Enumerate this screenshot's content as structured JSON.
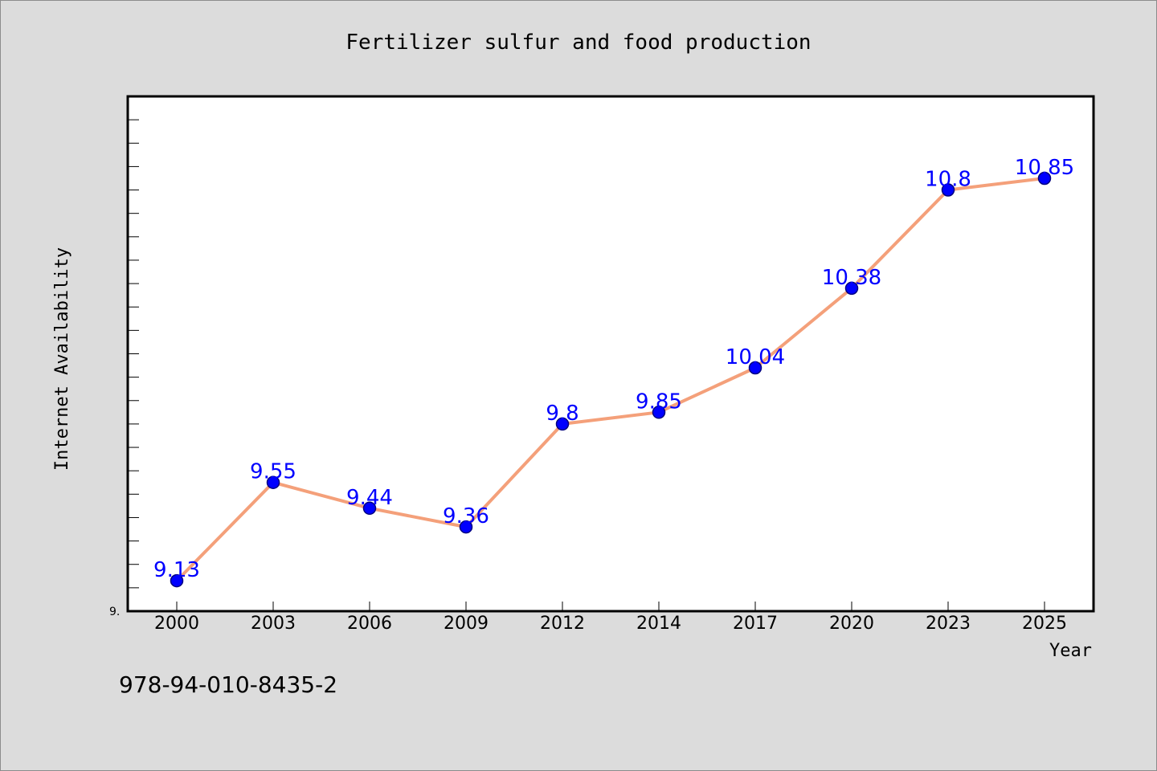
{
  "footer": {
    "isbn": "978-94-010-8435-2"
  },
  "chart_data": {
    "type": "line",
    "title": "Fertilizer sulfur and food production",
    "xlabel": "Year",
    "ylabel": "Internet Availability",
    "categories": [
      "2000",
      "2003",
      "2006",
      "2009",
      "2012",
      "2014",
      "2017",
      "2020",
      "2023",
      "2025"
    ],
    "values": [
      9.13,
      9.55,
      9.44,
      9.36,
      9.8,
      9.85,
      10.04,
      10.38,
      10.8,
      10.85
    ],
    "data_labels": [
      "9.13",
      "9.55",
      "9.44",
      "9.36",
      "9.8",
      "9.85",
      "10.04",
      "10.38",
      "10.8",
      "10.85"
    ],
    "ylim": [
      9.0,
      11.2
    ],
    "ytick_label": "9.",
    "grid": false,
    "legend": "none",
    "colors": {
      "line": "#f4a07a",
      "marker": "#0000ff",
      "marker_edge": "#000080",
      "data_label": "#0000ff",
      "plot_background": "#ffffff",
      "page_background": "#dcdcdc"
    }
  }
}
